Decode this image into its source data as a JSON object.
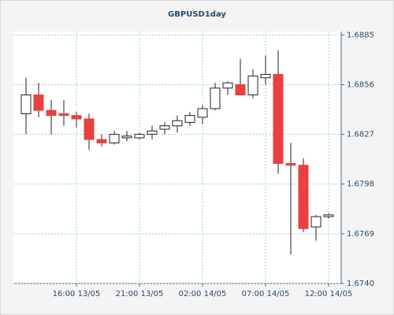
{
  "chart_data": {
    "type": "candlestick",
    "title": "GBPUSD1day",
    "categories": [
      null,
      null,
      null,
      null,
      "16:00 13/05",
      null,
      null,
      null,
      null,
      "21:00 13/05",
      null,
      null,
      null,
      null,
      "02:00 14/05",
      null,
      null,
      null,
      null,
      "07:00 14/05",
      null,
      null,
      null,
      null,
      "12:00 14/05"
    ],
    "open": [
      1.6839,
      1.685,
      1.6841,
      1.6839,
      1.6838,
      1.6836,
      1.6824,
      1.6822,
      1.6825,
      1.6825,
      1.6827,
      1.683,
      1.6832,
      1.6834,
      1.6837,
      1.6842,
      1.6854,
      1.6856,
      1.685,
      1.686,
      1.6862,
      1.681,
      1.6809,
      1.6773,
      1.6779
    ],
    "high": [
      1.686,
      1.6857,
      1.6847,
      1.6847,
      1.684,
      1.6839,
      1.6827,
      1.6829,
      1.6829,
      1.6828,
      1.6832,
      1.6834,
      1.6838,
      1.684,
      1.6844,
      1.6857,
      1.6858,
      1.6871,
      1.6865,
      1.6873,
      1.6876,
      1.6822,
      1.6813,
      1.678,
      1.6781
    ],
    "low": [
      1.6827,
      1.6837,
      1.6827,
      1.6832,
      1.6831,
      1.6818,
      1.682,
      1.6821,
      1.6823,
      1.6824,
      1.6824,
      1.6827,
      1.6828,
      1.6832,
      1.6833,
      1.6841,
      1.685,
      1.685,
      1.6848,
      1.6856,
      1.6804,
      1.6757,
      1.677,
      1.6765,
      1.6778
    ],
    "close": [
      1.685,
      1.6841,
      1.6838,
      1.6838,
      1.6836,
      1.6824,
      1.6822,
      1.6827,
      1.6826,
      1.6827,
      1.6829,
      1.6832,
      1.6835,
      1.6838,
      1.6842,
      1.6854,
      1.6857,
      1.685,
      1.6861,
      1.6862,
      1.681,
      1.6809,
      1.6772,
      1.6779,
      1.678
    ],
    "up_color": "#ffffff",
    "down_color": "#e8413f",
    "ylim": [
      1.674,
      1.6887
    ],
    "yticks": [
      {
        "value": 1.674,
        "label": "1.6740"
      },
      1.6769,
      1.6798,
      1.6827,
      1.6856,
      1.6885
    ],
    "grid": true
  }
}
